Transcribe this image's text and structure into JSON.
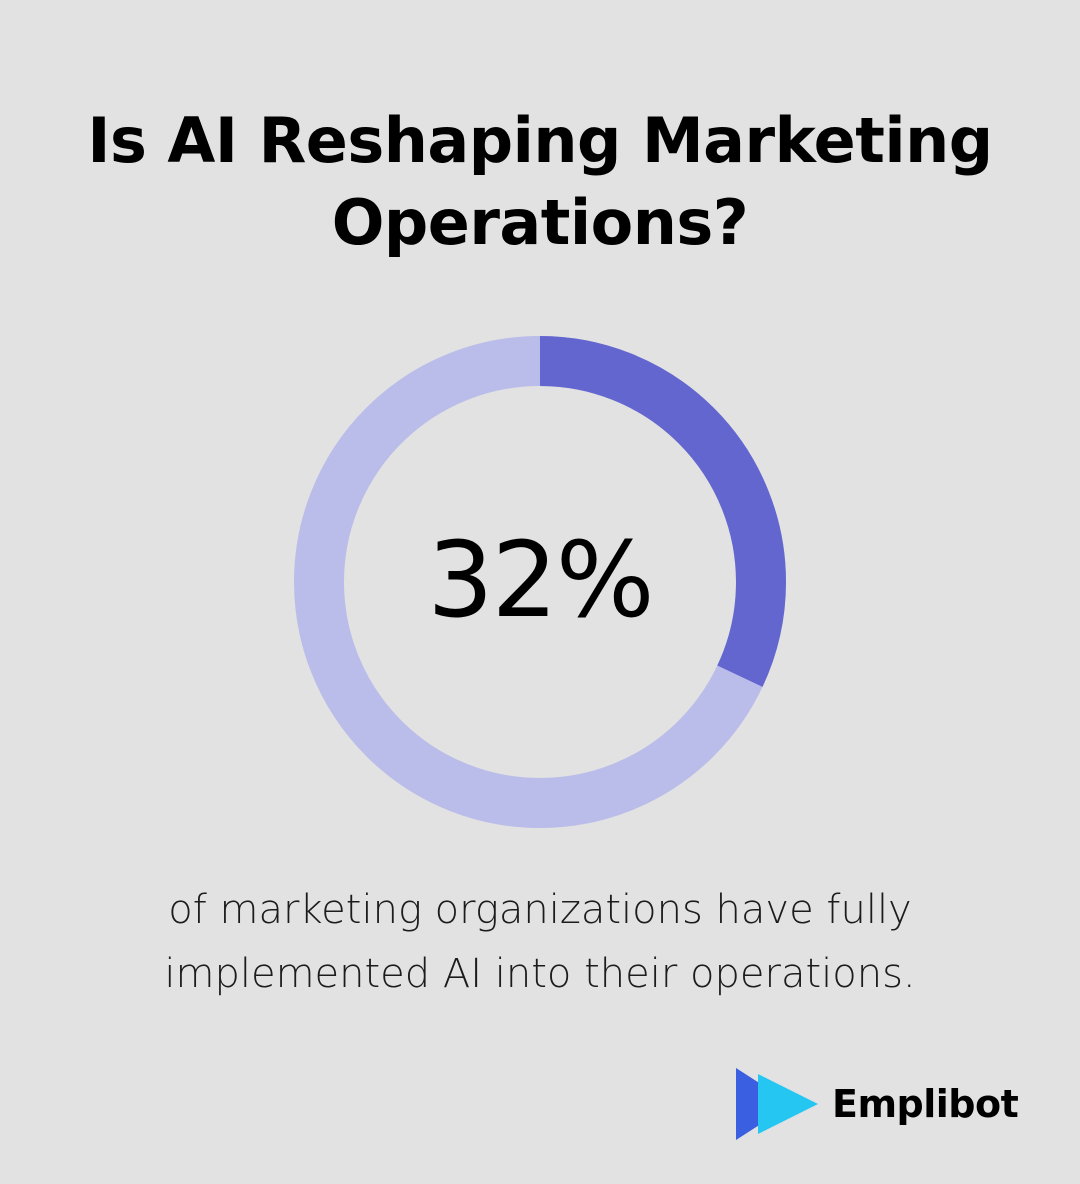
{
  "title": "Is AI Reshaping Marketing Operations?",
  "chart_data": {
    "type": "pie",
    "value": 32,
    "label": "32%",
    "total": 100,
    "colors": {
      "highlight": "#6366cf",
      "remainder": "#babcea"
    }
  },
  "caption": "of marketing organizations have fully implemented AI into their operations.",
  "brand": {
    "name": "Emplibot",
    "logo_icon": "play-arrow-icon",
    "colors": {
      "dark": "#3a5fe0",
      "light": "#25c6f2"
    }
  }
}
